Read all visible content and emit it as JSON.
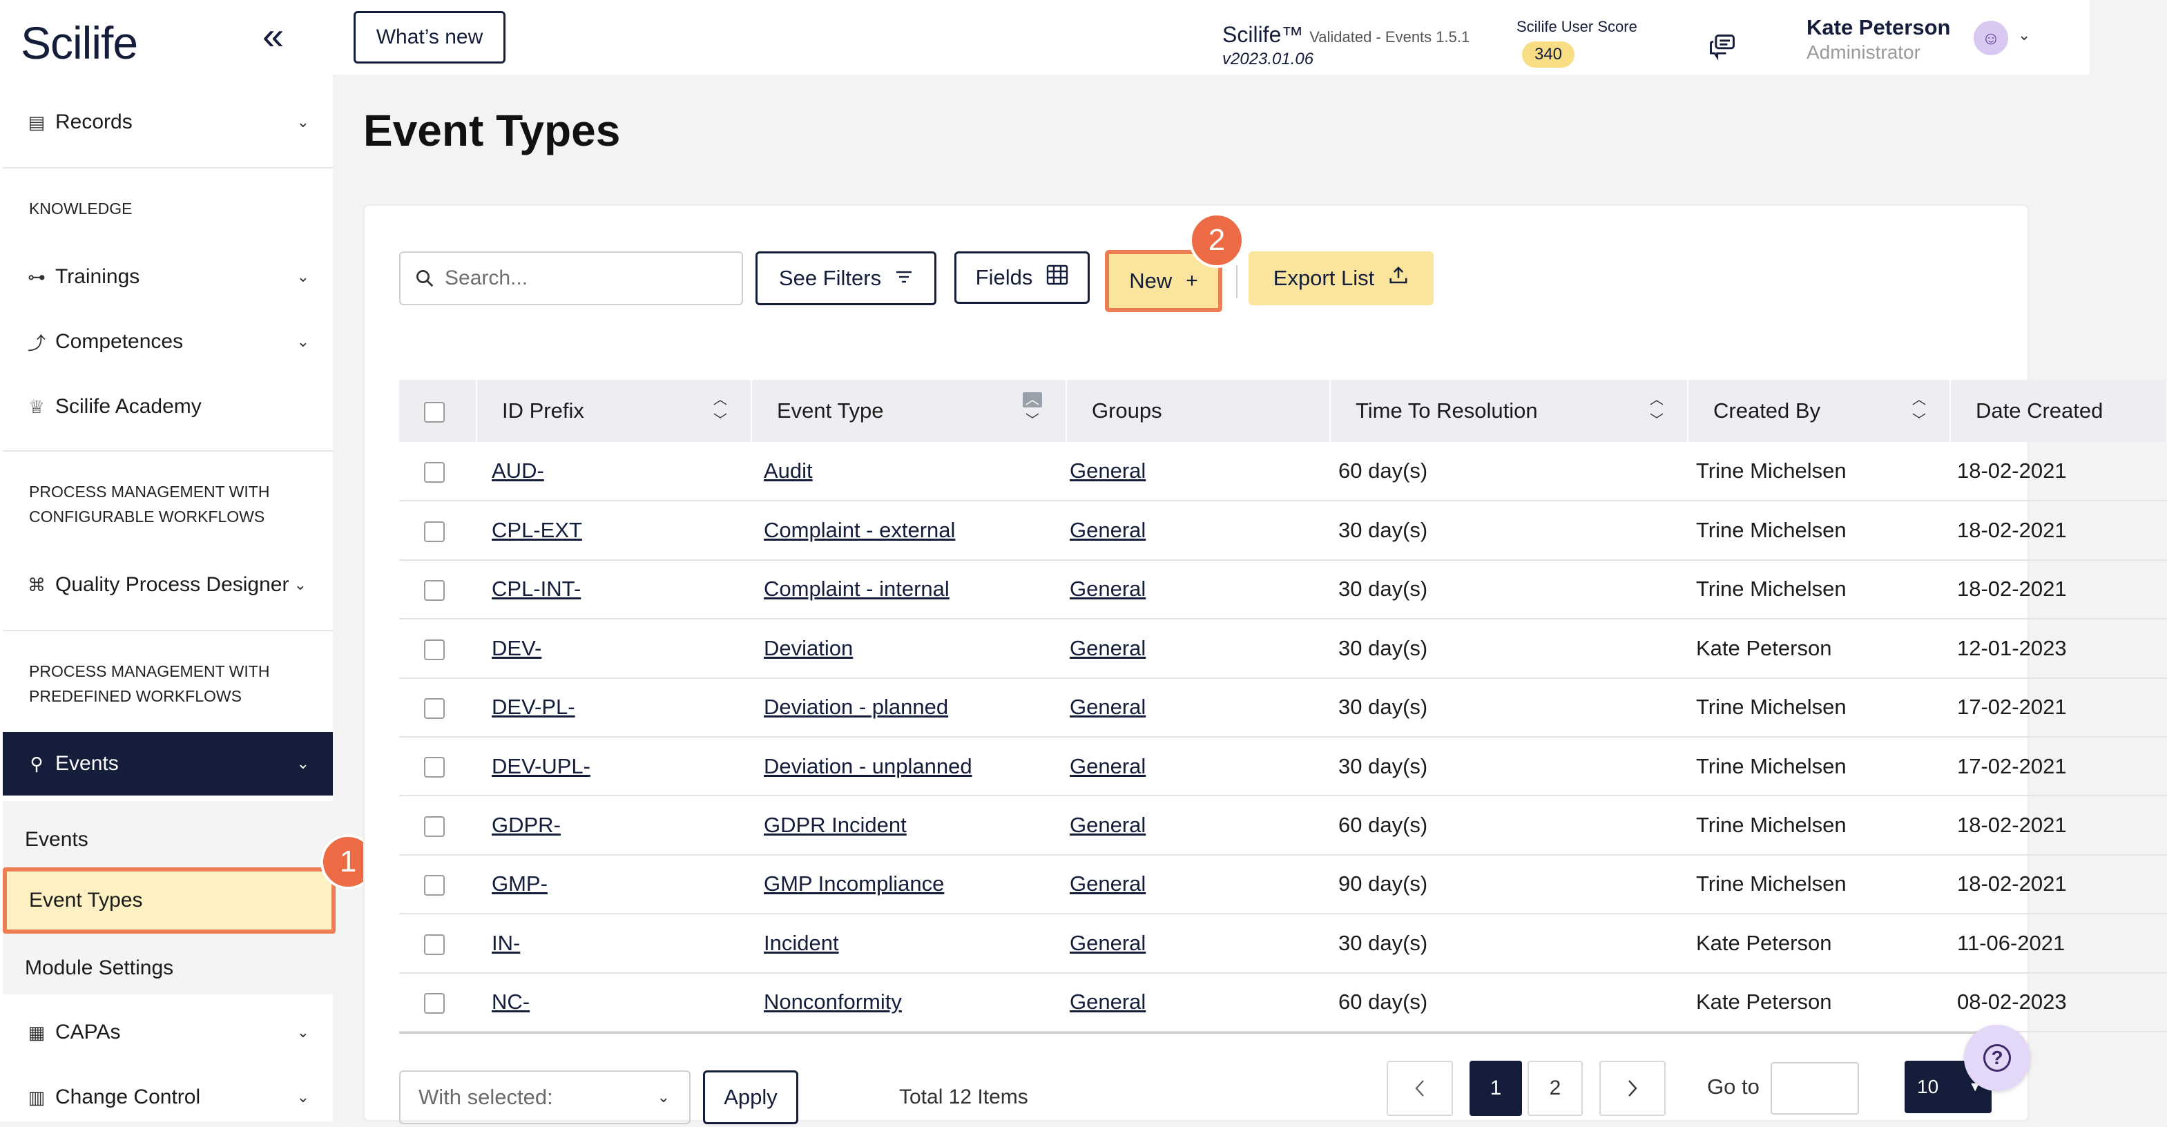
{
  "app": {
    "logo": "Scilife",
    "collapse_icon": "«",
    "name": "Scilife™",
    "validated": "Validated - Events 1.5.1",
    "version": "v2023.01.06",
    "whats_new": "What’s new",
    "score_label": "Scilife User Score",
    "score": "340"
  },
  "user": {
    "name": "Kate Peterson",
    "role": "Administrator",
    "avatar_glyph": "☺"
  },
  "sidebar": {
    "records": "Records",
    "knowledge_label": "KNOWLEDGE",
    "trainings": "Trainings",
    "competences": "Competences",
    "academy": "Scilife Academy",
    "pm_configurable": [
      "PROCESS MANAGEMENT WITH",
      "CONFIGURABLE WORKFLOWS"
    ],
    "quality_designer": "Quality Process Designer",
    "pm_predefined": [
      "PROCESS MANAGEMENT WITH",
      "PREDEFINED WORKFLOWS"
    ],
    "events": "Events",
    "sub_events": "Events",
    "sub_event_types": "Event Types",
    "sub_module_settings": "Module Settings",
    "capas": "CAPAs",
    "change_control": "Change Control"
  },
  "page": {
    "title": "Event Types"
  },
  "toolbar": {
    "search_placeholder": "Search...",
    "see_filters": "See Filters",
    "fields": "Fields",
    "new": "New",
    "new_icon": "+",
    "export": "Export List"
  },
  "callouts": {
    "one": "1",
    "two": "2"
  },
  "table": {
    "columns": [
      "ID Prefix",
      "Event Type",
      "Groups",
      "Time To Resolution",
      "Created By",
      "Date Created"
    ],
    "rows": [
      {
        "prefix": "AUD-",
        "type": "Audit",
        "group": "General",
        "ttr": "60 day(s)",
        "by": "Trine Michelsen",
        "date": "18-02-2021"
      },
      {
        "prefix": "CPL-EXT",
        "type": "Complaint - external",
        "group": "General",
        "ttr": "30 day(s)",
        "by": "Trine Michelsen",
        "date": "18-02-2021"
      },
      {
        "prefix": "CPL-INT-",
        "type": "Complaint - internal",
        "group": "General",
        "ttr": "30 day(s)",
        "by": "Trine Michelsen",
        "date": "18-02-2021"
      },
      {
        "prefix": "DEV-",
        "type": "Deviation",
        "group": "General",
        "ttr": "30 day(s)",
        "by": "Kate Peterson",
        "date": "12-01-2023"
      },
      {
        "prefix": "DEV-PL-",
        "type": "Deviation - planned",
        "group": "General",
        "ttr": "30 day(s)",
        "by": "Trine Michelsen",
        "date": "17-02-2021"
      },
      {
        "prefix": "DEV-UPL-",
        "type": "Deviation - unplanned",
        "group": "General",
        "ttr": "30 day(s)",
        "by": "Trine Michelsen",
        "date": "17-02-2021"
      },
      {
        "prefix": "GDPR-",
        "type": "GDPR Incident",
        "group": "General",
        "ttr": "60 day(s)",
        "by": "Trine Michelsen",
        "date": "18-02-2021"
      },
      {
        "prefix": "GMP-",
        "type": "GMP Incompliance",
        "group": "General",
        "ttr": "90 day(s)",
        "by": "Trine Michelsen",
        "date": "18-02-2021"
      },
      {
        "prefix": "IN-",
        "type": "Incident",
        "group": "General",
        "ttr": "30 day(s)",
        "by": "Kate Peterson",
        "date": "11-06-2021"
      },
      {
        "prefix": "NC-",
        "type": "Nonconformity",
        "group": "General",
        "ttr": "60 day(s)",
        "by": "Kate Peterson",
        "date": "08-02-2023"
      }
    ]
  },
  "footer": {
    "with_selected": "With selected:",
    "apply": "Apply",
    "total": "Total 12 Items",
    "page_current": "1",
    "page_next": "2",
    "goto": "Go to",
    "page_size": "10",
    "help_glyph": "?"
  },
  "colors": {
    "navy": "#141d3a",
    "highlight": "#ed7d52",
    "yellow": "#fbe49c"
  }
}
